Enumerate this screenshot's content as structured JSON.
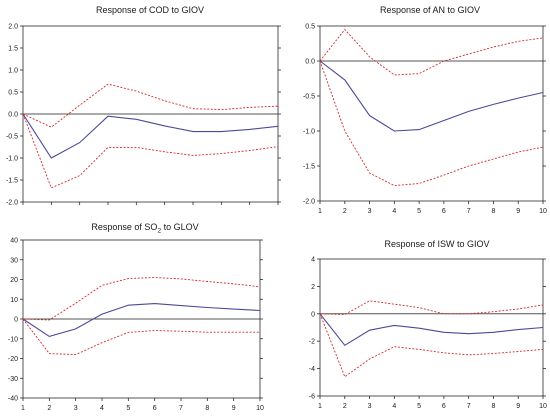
{
  "chart_data": [
    {
      "type": "line",
      "title": "Response of COD to GIOV",
      "title_parts": [
        "Response of COD to GIOV"
      ],
      "xlabel": "",
      "ylabel": "",
      "xlim": [
        1,
        10
      ],
      "ylim": [
        -2.0,
        2.0
      ],
      "x_ticks": [],
      "y_ticks": [
        -2.0,
        -1.5,
        -1.0,
        -0.5,
        0.0,
        0.5,
        1.0,
        1.5,
        2.0
      ],
      "y_tick_labels": [
        "-2.0",
        "-1.5",
        "-1.0",
        "-0.5",
        "0.0",
        "0.5",
        "1.0",
        "1.5",
        "2.0"
      ],
      "x": [
        1,
        2,
        3,
        4,
        5,
        6,
        7,
        8,
        9,
        10
      ],
      "series": [
        {
          "role": "response",
          "values": [
            0.0,
            -1.0,
            -0.65,
            -0.05,
            -0.12,
            -0.27,
            -0.4,
            -0.4,
            -0.35,
            -0.28
          ]
        },
        {
          "role": "upper",
          "values": [
            0.0,
            -0.3,
            0.2,
            0.68,
            0.52,
            0.3,
            0.12,
            0.1,
            0.15,
            0.18
          ]
        },
        {
          "role": "lower",
          "values": [
            0.0,
            -1.68,
            -1.4,
            -0.76,
            -0.76,
            -0.86,
            -0.94,
            -0.9,
            -0.83,
            -0.74
          ]
        }
      ],
      "grid": false
    },
    {
      "type": "line",
      "title": "Response of AN to GIOV",
      "title_parts": [
        "Response of AN to GIOV"
      ],
      "xlabel": "",
      "ylabel": "",
      "xlim": [
        1,
        10
      ],
      "ylim": [
        -2.0,
        0.5
      ],
      "x_ticks": [
        1,
        2,
        3,
        4,
        5,
        6,
        7,
        8,
        9,
        10
      ],
      "y_ticks": [
        -2.0,
        -1.5,
        -1.0,
        -0.5,
        0.0,
        0.5
      ],
      "y_tick_labels": [
        "-2.0",
        "-1.5",
        "-1.0",
        "-0.5",
        "0.0",
        "0.5"
      ],
      "x": [
        1,
        2,
        3,
        4,
        5,
        6,
        7,
        8,
        9,
        10
      ],
      "series": [
        {
          "role": "response",
          "values": [
            0.0,
            -0.27,
            -0.78,
            -1.0,
            -0.98,
            -0.85,
            -0.72,
            -0.62,
            -0.53,
            -0.45
          ]
        },
        {
          "role": "upper",
          "values": [
            0.0,
            0.45,
            0.06,
            -0.2,
            -0.18,
            0.0,
            0.1,
            0.2,
            0.28,
            0.33
          ]
        },
        {
          "role": "lower",
          "values": [
            0.0,
            -1.0,
            -1.6,
            -1.78,
            -1.75,
            -1.63,
            -1.5,
            -1.4,
            -1.3,
            -1.23
          ]
        }
      ],
      "grid": false
    },
    {
      "type": "line",
      "title": "Response of SO₂ to GLOV",
      "title_parts": [
        "Response of SO",
        "2",
        " to GLOV"
      ],
      "xlabel": "",
      "ylabel": "",
      "xlim": [
        1,
        10
      ],
      "ylim": [
        -40,
        40
      ],
      "x_ticks": [
        1,
        2,
        3,
        4,
        5,
        6,
        7,
        8,
        9,
        10
      ],
      "y_ticks": [
        -40,
        -30,
        -20,
        -10,
        0,
        10,
        20,
        30,
        40
      ],
      "y_tick_labels": [
        "-40",
        "-30",
        "-20",
        "-10",
        "0",
        "10",
        "20",
        "30",
        "40"
      ],
      "x": [
        1,
        2,
        3,
        4,
        5,
        6,
        7,
        8,
        9,
        10
      ],
      "series": [
        {
          "role": "response",
          "values": [
            0.0,
            -8.8,
            -5.0,
            2.5,
            7.0,
            7.8,
            6.8,
            5.8,
            5.0,
            4.3
          ]
        },
        {
          "role": "upper",
          "values": [
            0.0,
            -0.5,
            8.0,
            17.0,
            20.5,
            21.0,
            20.3,
            19.0,
            17.8,
            16.3
          ]
        },
        {
          "role": "lower",
          "values": [
            0.0,
            -17.5,
            -18.0,
            -12.0,
            -6.8,
            -5.8,
            -6.2,
            -6.7,
            -6.7,
            -6.7
          ]
        }
      ],
      "grid": false
    },
    {
      "type": "line",
      "title": "Response of ISW to GIOV",
      "title_parts": [
        "Response of ISW to GIOV"
      ],
      "xlabel": "",
      "ylabel": "",
      "xlim": [
        1,
        10
      ],
      "ylim": [
        -6,
        4
      ],
      "x_ticks": [
        1,
        2,
        3,
        4,
        5,
        6,
        7,
        8,
        9,
        10
      ],
      "y_ticks": [
        -6,
        -4,
        -2,
        0,
        2,
        4
      ],
      "y_tick_labels": [
        "-6",
        "-4",
        "-2",
        "0",
        "2",
        "4"
      ],
      "x": [
        1,
        2,
        3,
        4,
        5,
        6,
        7,
        8,
        9,
        10
      ],
      "series": [
        {
          "role": "response",
          "values": [
            0.0,
            -2.3,
            -1.2,
            -0.85,
            -1.05,
            -1.35,
            -1.45,
            -1.35,
            -1.15,
            -1.0
          ]
        },
        {
          "role": "upper",
          "values": [
            0.0,
            -0.05,
            0.95,
            0.7,
            0.45,
            0.0,
            0.0,
            0.15,
            0.35,
            0.65
          ]
        },
        {
          "role": "lower",
          "values": [
            0.0,
            -4.6,
            -3.3,
            -2.4,
            -2.6,
            -2.85,
            -3.0,
            -2.9,
            -2.75,
            -2.6
          ]
        }
      ],
      "grid": false
    }
  ],
  "style": {
    "response_color": "#4a4a9a",
    "band_color": "#d62a2a",
    "axis_color": "#2a2a2a",
    "zero_line_color": "#555555",
    "text_color": "#1a1a1a",
    "background": "#ffffff"
  }
}
